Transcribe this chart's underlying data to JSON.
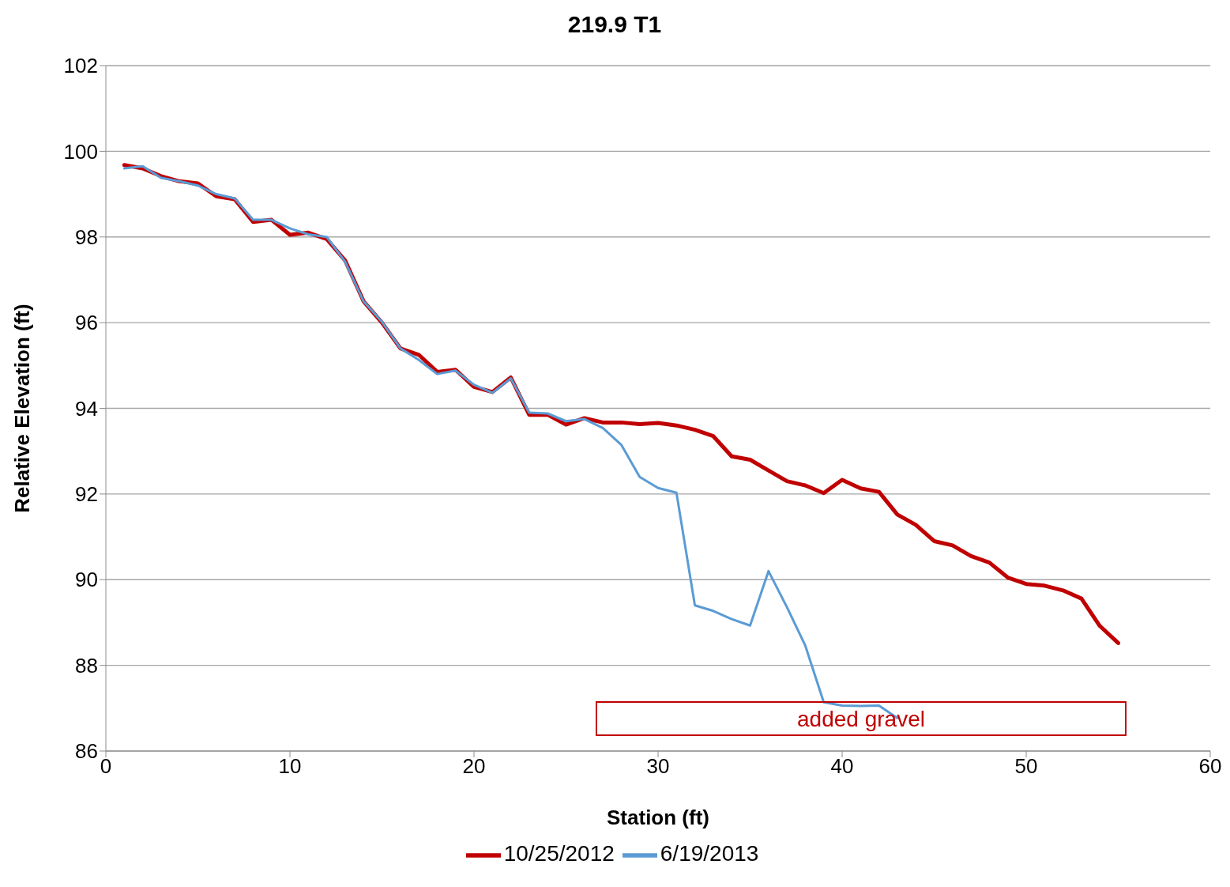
{
  "chart_data": {
    "type": "line",
    "title": "219.9 T1",
    "xlabel": "Station (ft)",
    "ylabel": "Relative Elevation (ft)",
    "xlim": [
      0,
      60
    ],
    "xticks": [
      0,
      10,
      20,
      30,
      40,
      50,
      60
    ],
    "ylim": [
      86,
      102
    ],
    "yticks": [
      86,
      88,
      90,
      92,
      94,
      96,
      98,
      100,
      102
    ],
    "grid": "y",
    "legend": "bottom",
    "marker": "none",
    "line_style": "solid",
    "annotations": [
      "added gravel"
    ],
    "series": [
      {
        "name": "10/25/2012",
        "color": "#c00000",
        "x": [
          1,
          2,
          3,
          4,
          5,
          6,
          7,
          8,
          9,
          10,
          11,
          12,
          13,
          14,
          15,
          16,
          17,
          18,
          19,
          20,
          21,
          22,
          23,
          24,
          25,
          26,
          27,
          28,
          29,
          30,
          31,
          32,
          33,
          34,
          35,
          36,
          37,
          38,
          39,
          40,
          41,
          42,
          43,
          44,
          45,
          46,
          47,
          48,
          49,
          50,
          51,
          52,
          53,
          54,
          55
        ],
        "values": [
          99.68,
          99.6,
          99.42,
          99.3,
          99.25,
          98.95,
          98.88,
          98.35,
          98.4,
          98.05,
          98.1,
          97.95,
          97.45,
          96.5,
          96.0,
          95.4,
          95.25,
          94.85,
          94.9,
          94.5,
          94.38,
          94.72,
          93.85,
          93.85,
          93.62,
          93.77,
          93.67,
          93.67,
          93.63,
          93.66,
          93.6,
          93.5,
          93.35,
          92.88,
          92.8,
          92.55,
          92.3,
          92.2,
          92.02,
          92.33,
          92.13,
          92.05,
          91.52,
          91.28,
          90.9,
          90.8,
          90.55,
          90.4,
          90.05,
          89.9,
          89.86,
          89.75,
          89.56,
          88.92,
          88.52
        ]
      },
      {
        "name": "6/19/2013",
        "color": "#5b9bd5",
        "x": [
          1,
          2,
          3,
          4,
          5,
          6,
          7,
          8,
          9,
          10,
          11,
          12,
          13,
          14,
          15,
          16,
          17,
          18,
          19,
          20,
          21,
          22,
          23,
          24,
          25,
          26,
          27,
          28,
          29,
          30,
          31,
          32,
          33,
          34,
          35,
          36,
          37,
          38,
          39,
          40,
          41,
          42,
          43
        ],
        "values": [
          99.6,
          99.65,
          99.38,
          99.3,
          99.2,
          99.0,
          98.9,
          98.4,
          98.4,
          98.2,
          98.06,
          98.0,
          97.42,
          96.5,
          96.02,
          95.4,
          95.13,
          94.8,
          94.88,
          94.55,
          94.36,
          94.7,
          93.9,
          93.88,
          93.7,
          93.75,
          93.54,
          93.15,
          92.4,
          92.14,
          92.03,
          89.4,
          89.27,
          89.08,
          88.93,
          90.2,
          89.36,
          88.46,
          87.14,
          87.06,
          87.05,
          87.06,
          86.77
        ]
      }
    ]
  }
}
